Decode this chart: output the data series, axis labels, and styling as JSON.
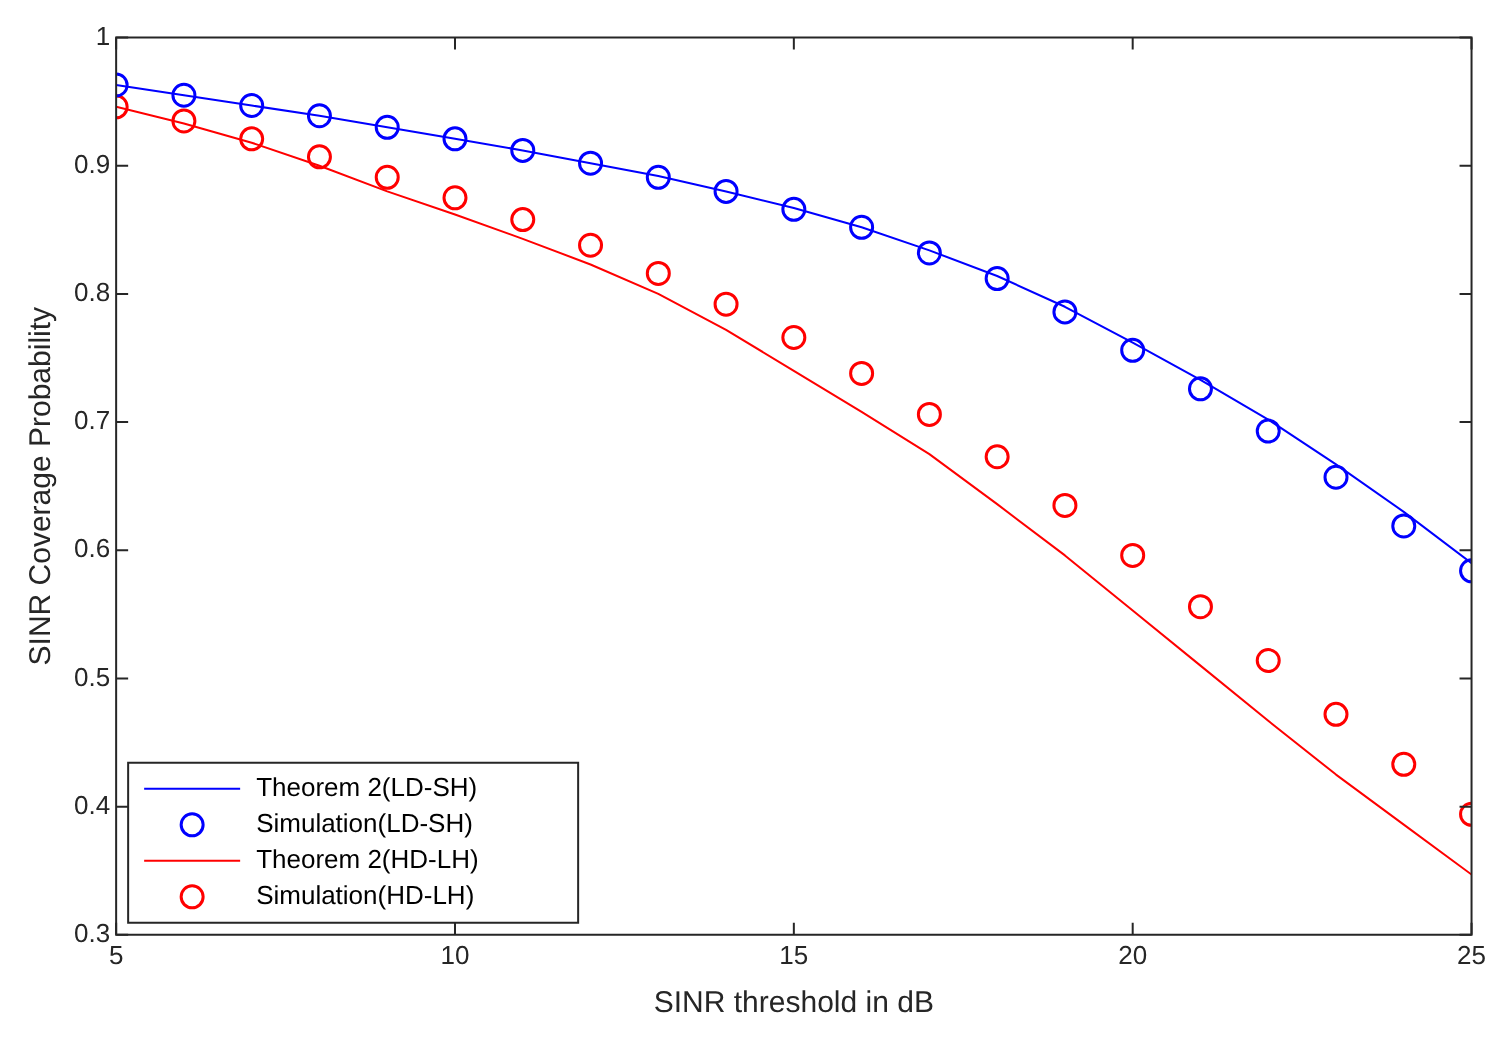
{
  "chart_data": {
    "type": "line",
    "xlabel": "SINR threshold in dB",
    "ylabel": "SINR Coverage Probability",
    "x": [
      5,
      6,
      7,
      8,
      9,
      10,
      11,
      12,
      13,
      14,
      15,
      16,
      17,
      18,
      19,
      20,
      21,
      22,
      23,
      24,
      25
    ],
    "xlim": [
      5,
      25
    ],
    "xticks": [
      5,
      10,
      15,
      20,
      25
    ],
    "ylim": [
      0.3,
      1
    ],
    "yticks": [
      0.3,
      0.4,
      0.5,
      0.6,
      0.7,
      0.8,
      0.9,
      1
    ],
    "grid": false,
    "legend": "bottom left",
    "series": [
      {
        "name": "Theorem 2(LD-SH)",
        "type": "line",
        "color": "#0000ff",
        "marker": "none",
        "values": [
          0.963,
          0.955,
          0.947,
          0.939,
          0.93,
          0.921,
          0.912,
          0.902,
          0.892,
          0.88,
          0.867,
          0.852,
          0.834,
          0.814,
          0.79,
          0.762,
          0.733,
          0.702,
          0.667,
          0.63,
          0.59
        ]
      },
      {
        "name": "Simulation(LD-SH)",
        "type": "scatter",
        "color": "#0000ff",
        "marker": "circle",
        "values": [
          0.963,
          0.955,
          0.947,
          0.939,
          0.93,
          0.921,
          0.912,
          0.902,
          0.891,
          0.88,
          0.866,
          0.852,
          0.832,
          0.812,
          0.786,
          0.756,
          0.726,
          0.693,
          0.657,
          0.619,
          0.584
        ]
      },
      {
        "name": "Theorem 2(HD-LH)",
        "type": "line",
        "color": "#ff0000",
        "marker": "none",
        "values": [
          0.946,
          0.933,
          0.918,
          0.9,
          0.88,
          0.862,
          0.843,
          0.823,
          0.8,
          0.772,
          0.74,
          0.708,
          0.675,
          0.636,
          0.596,
          0.553,
          0.51,
          0.467,
          0.425,
          0.386,
          0.347
        ]
      },
      {
        "name": "Simulation(HD-LH)",
        "type": "scatter",
        "color": "#ff0000",
        "marker": "circle",
        "values": [
          0.946,
          0.935,
          0.921,
          0.907,
          0.891,
          0.875,
          0.858,
          0.838,
          0.816,
          0.792,
          0.766,
          0.738,
          0.706,
          0.673,
          0.635,
          0.596,
          0.556,
          0.514,
          0.472,
          0.433,
          0.394
        ]
      }
    ]
  }
}
